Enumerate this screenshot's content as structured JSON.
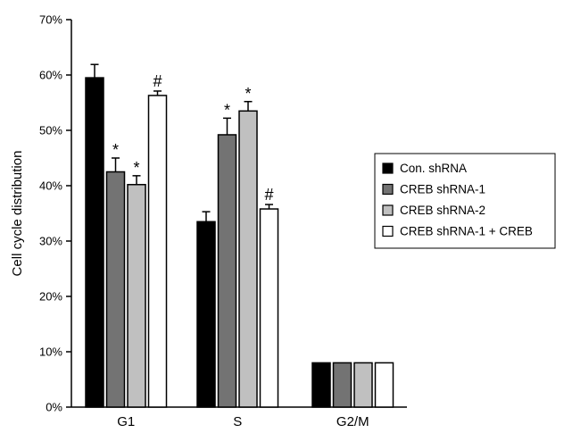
{
  "chart_data": {
    "type": "bar",
    "title": "",
    "xlabel": "",
    "ylabel": "Cell cycle distribution",
    "ylim": [
      0,
      70
    ],
    "yticks": [
      0,
      10,
      20,
      30,
      40,
      50,
      60,
      70
    ],
    "ytick_labels": [
      "0%",
      "10%",
      "20%",
      "30%",
      "40%",
      "50%",
      "60%",
      "70%"
    ],
    "categories": [
      "G1",
      "S",
      "G2/M"
    ],
    "grid": false,
    "legend_position": "right",
    "series": [
      {
        "name": "Con. shRNA",
        "color": "#000000",
        "values": [
          59.5,
          33.5,
          8
        ],
        "errors": [
          2.4,
          1.8,
          0
        ],
        "annotations": [
          "",
          "",
          ""
        ]
      },
      {
        "name": "CREB shRNA-1",
        "color": "#737373",
        "values": [
          42.5,
          49.2,
          8
        ],
        "errors": [
          2.5,
          3.0,
          0
        ],
        "annotations": [
          "*",
          "*",
          ""
        ]
      },
      {
        "name": "CREB shRNA-2",
        "color": "#c0c0c0",
        "values": [
          40.2,
          53.5,
          8
        ],
        "errors": [
          1.6,
          1.7,
          0
        ],
        "annotations": [
          "*",
          "*",
          ""
        ]
      },
      {
        "name": "CREB shRNA-1 + CREB",
        "color": "#ffffff",
        "values": [
          56.3,
          35.8,
          8
        ],
        "errors": [
          0.8,
          0.8,
          0
        ],
        "annotations": [
          "#",
          "#",
          ""
        ]
      }
    ]
  }
}
